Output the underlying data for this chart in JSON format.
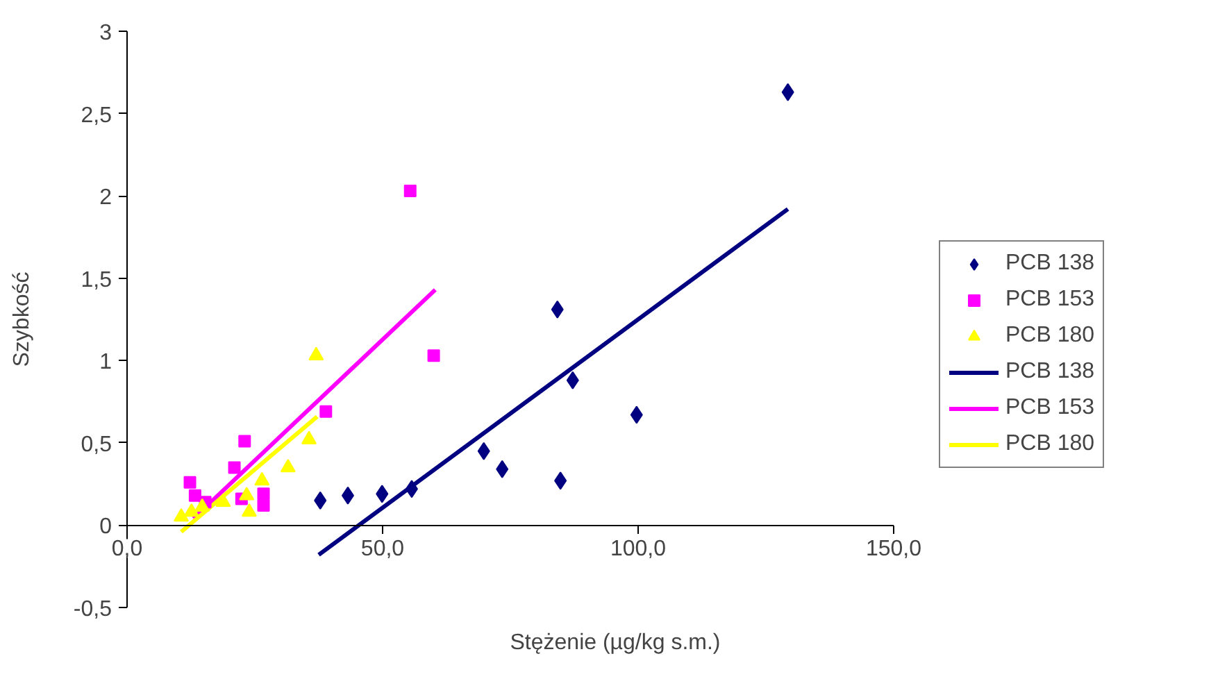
{
  "chart_data": {
    "type": "scatter",
    "xlabel": "Stężenie (µg/kg s.m.)",
    "ylabel": "Szybkość",
    "xlim": [
      0,
      150
    ],
    "ylim": [
      -0.5,
      3
    ],
    "xticks": [
      {
        "value": 0,
        "label": "0,0"
      },
      {
        "value": 50,
        "label": "50,0"
      },
      {
        "value": 100,
        "label": "100,0"
      },
      {
        "value": 150,
        "label": "150,0"
      }
    ],
    "yticks": [
      {
        "value": -0.5,
        "label": "-0,5"
      },
      0,
      {
        "value": 0.5,
        "label": "0,5"
      },
      1,
      {
        "value": 1.5,
        "label": "1,5"
      },
      2,
      {
        "value": 2.5,
        "label": "2,5"
      },
      3
    ],
    "grid": false,
    "legend": "right",
    "series": [
      {
        "name": "PCB 138",
        "marker": "diamond",
        "color": "#000080",
        "x": [
          37.8,
          43.2,
          49.9,
          55.7,
          69.8,
          73.4,
          84.2,
          84.8,
          87.2,
          99.7,
          129.3
        ],
        "values": [
          0.15,
          0.18,
          0.19,
          0.22,
          0.45,
          0.34,
          1.31,
          0.27,
          0.88,
          0.67,
          2.63
        ]
      },
      {
        "name": "PCB 153",
        "marker": "square",
        "color": "#ff00ff",
        "x": [
          12.3,
          13.3,
          15.3,
          21.0,
          22.4,
          23.0,
          26.7,
          26.7,
          38.9,
          55.4,
          60.0
        ],
        "values": [
          0.26,
          0.18,
          0.14,
          0.35,
          0.16,
          0.51,
          0.19,
          0.12,
          0.69,
          2.03,
          1.03
        ]
      },
      {
        "name": "PCB 180",
        "marker": "triangle",
        "color": "#ffff00",
        "x": [
          10.6,
          12.6,
          14.7,
          18.8,
          23.4,
          23.9,
          26.4,
          31.5,
          35.6,
          37.0
        ],
        "values": [
          0.05,
          0.08,
          0.11,
          0.14,
          0.18,
          0.08,
          0.27,
          0.35,
          0.52,
          1.03
        ]
      },
      {
        "name": "PCB 138",
        "type": "line",
        "color": "#000080",
        "x": [
          37.5,
          129.3
        ],
        "values": [
          -0.18,
          1.92
        ]
      },
      {
        "name": "PCB 153",
        "type": "line",
        "color": "#ff00ff",
        "x": [
          13.0,
          60.3
        ],
        "values": [
          0.04,
          1.43
        ]
      },
      {
        "name": "PCB 180",
        "type": "line",
        "color": "#ffff00",
        "x": [
          10.6,
          37.2
        ],
        "values": [
          -0.04,
          0.66
        ]
      }
    ]
  }
}
